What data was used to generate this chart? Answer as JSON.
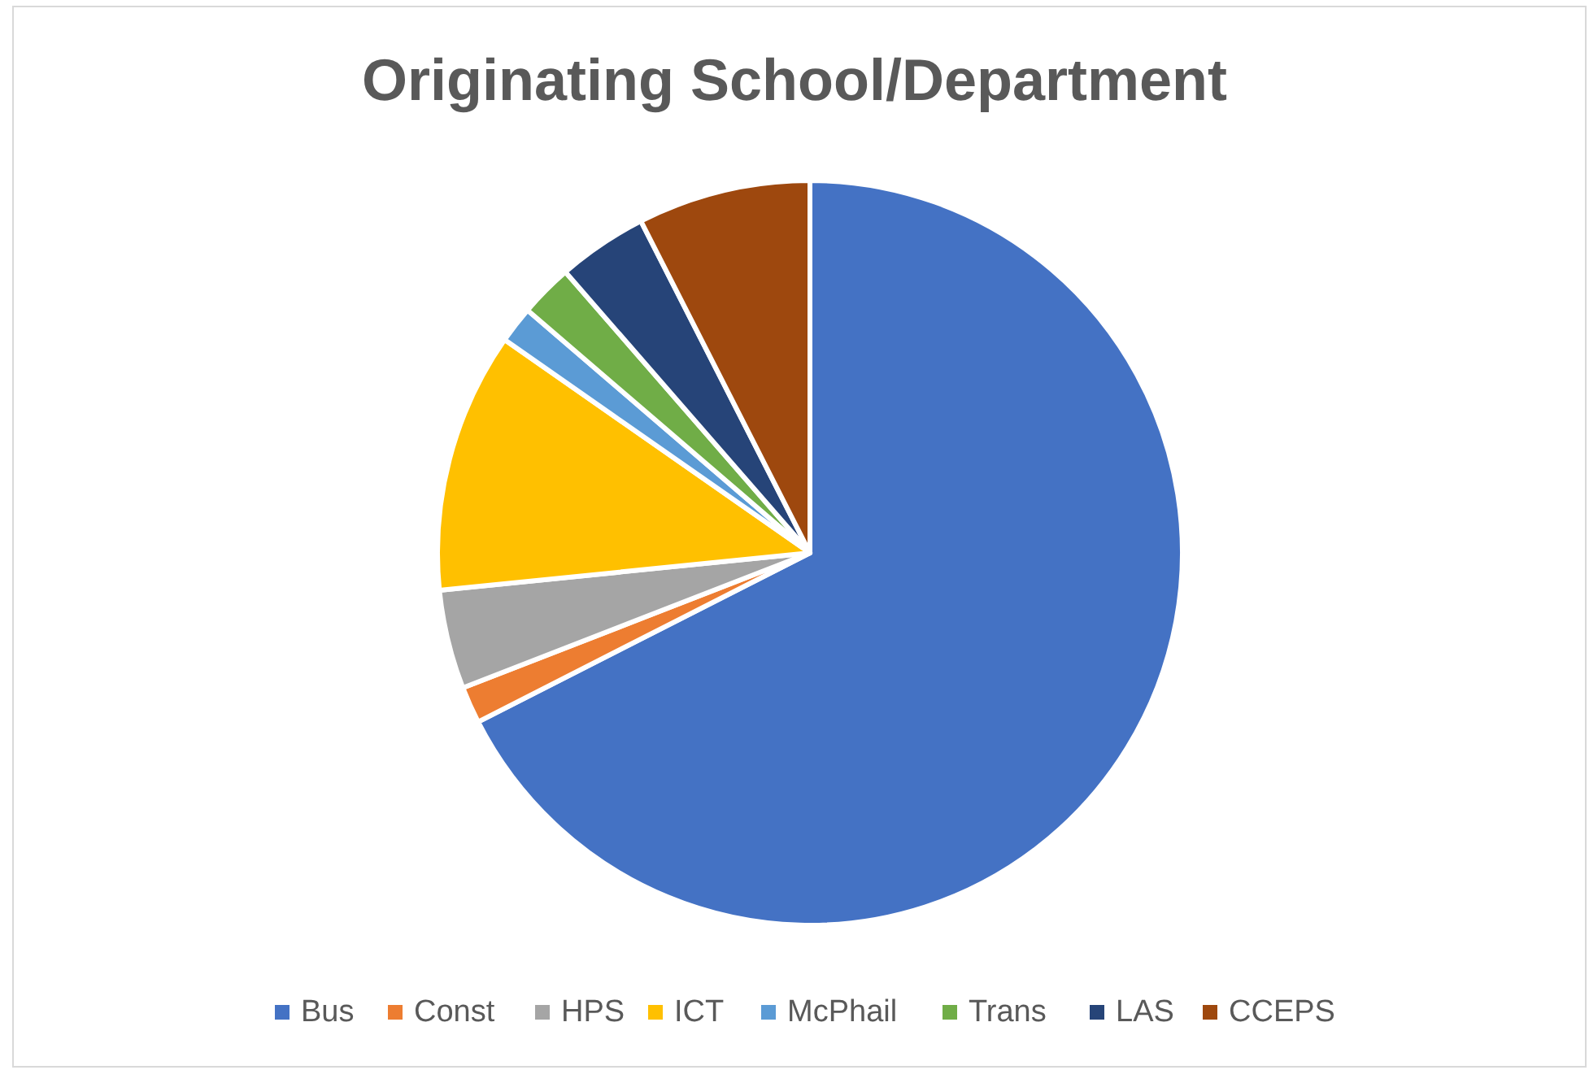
{
  "chart_data": {
    "type": "pie",
    "title": "Originating School/Department",
    "categories": [
      "Bus",
      "Const",
      "HPS",
      "ICT",
      "McPhail",
      "Trans",
      "LAS",
      "CCEPS"
    ],
    "values": [
      67.5,
      1.6,
      4.3,
      11.3,
      1.6,
      2.3,
      3.9,
      7.5
    ],
    "colors": [
      "#4472c4",
      "#ed7d31",
      "#a5a5a5",
      "#ffc000",
      "#5b9bd5",
      "#70ad47",
      "#264478",
      "#9e480e"
    ],
    "legend": "bottom"
  }
}
